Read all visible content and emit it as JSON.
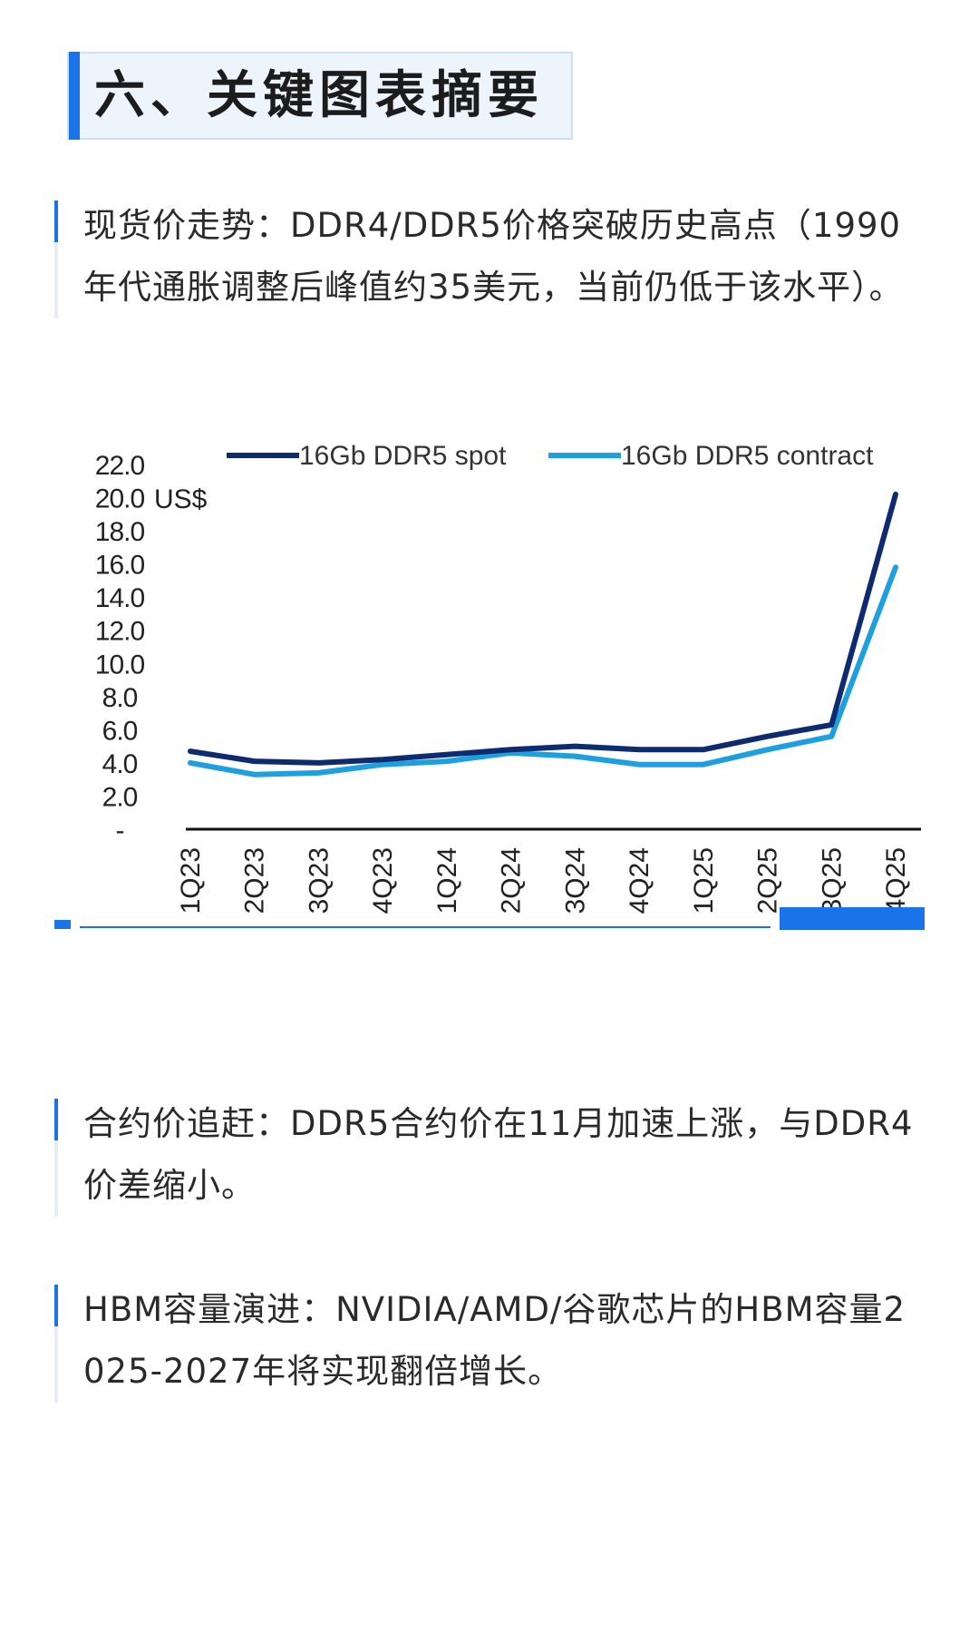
{
  "heading": {
    "title": "六、关键图表摘要"
  },
  "paragraphs": [
    {
      "text": "现货价走势：DDR4/DDR5价格突破历史高点（1990年代通胀调整后峰值约35美元，当前仍低于该水平）。"
    },
    {
      "text": "合约价追赶：DDR5合约价在11月加速上涨，与DDR4价差缩小。"
    },
    {
      "text": "HBM容量演进：NVIDIA/AMD/谷歌芯片的HBM容量2025-2027年将实现翻倍增长。"
    }
  ],
  "colors": {
    "accent": "#1a73e8",
    "spot": "#0d2b6e",
    "contract": "#1ea0e0"
  },
  "chart_data": {
    "type": "line",
    "ylabel": "US$",
    "ylim": [
      0,
      22
    ],
    "y_ticks": [
      "-",
      "2.0",
      "4.0",
      "6.0",
      "8.0",
      "10.0",
      "12.0",
      "14.0",
      "16.0",
      "18.0",
      "20.0",
      "22.0"
    ],
    "categories": [
      "1Q23",
      "2Q23",
      "3Q23",
      "4Q23",
      "1Q24",
      "2Q24",
      "3Q24",
      "4Q24",
      "1Q25",
      "2Q25",
      "3Q25",
      "4Q25"
    ],
    "series": [
      {
        "name": "16Gb DDR5 spot",
        "values": [
          4.7,
          4.1,
          4.0,
          4.2,
          4.5,
          4.8,
          5.0,
          4.8,
          4.8,
          5.6,
          6.3,
          20.2
        ]
      },
      {
        "name": "16Gb DDR5 contract",
        "values": [
          4.0,
          3.3,
          3.4,
          3.9,
          4.1,
          4.6,
          4.4,
          3.9,
          3.9,
          4.8,
          5.6,
          15.8
        ]
      }
    ],
    "legend": "top",
    "grid": false
  }
}
